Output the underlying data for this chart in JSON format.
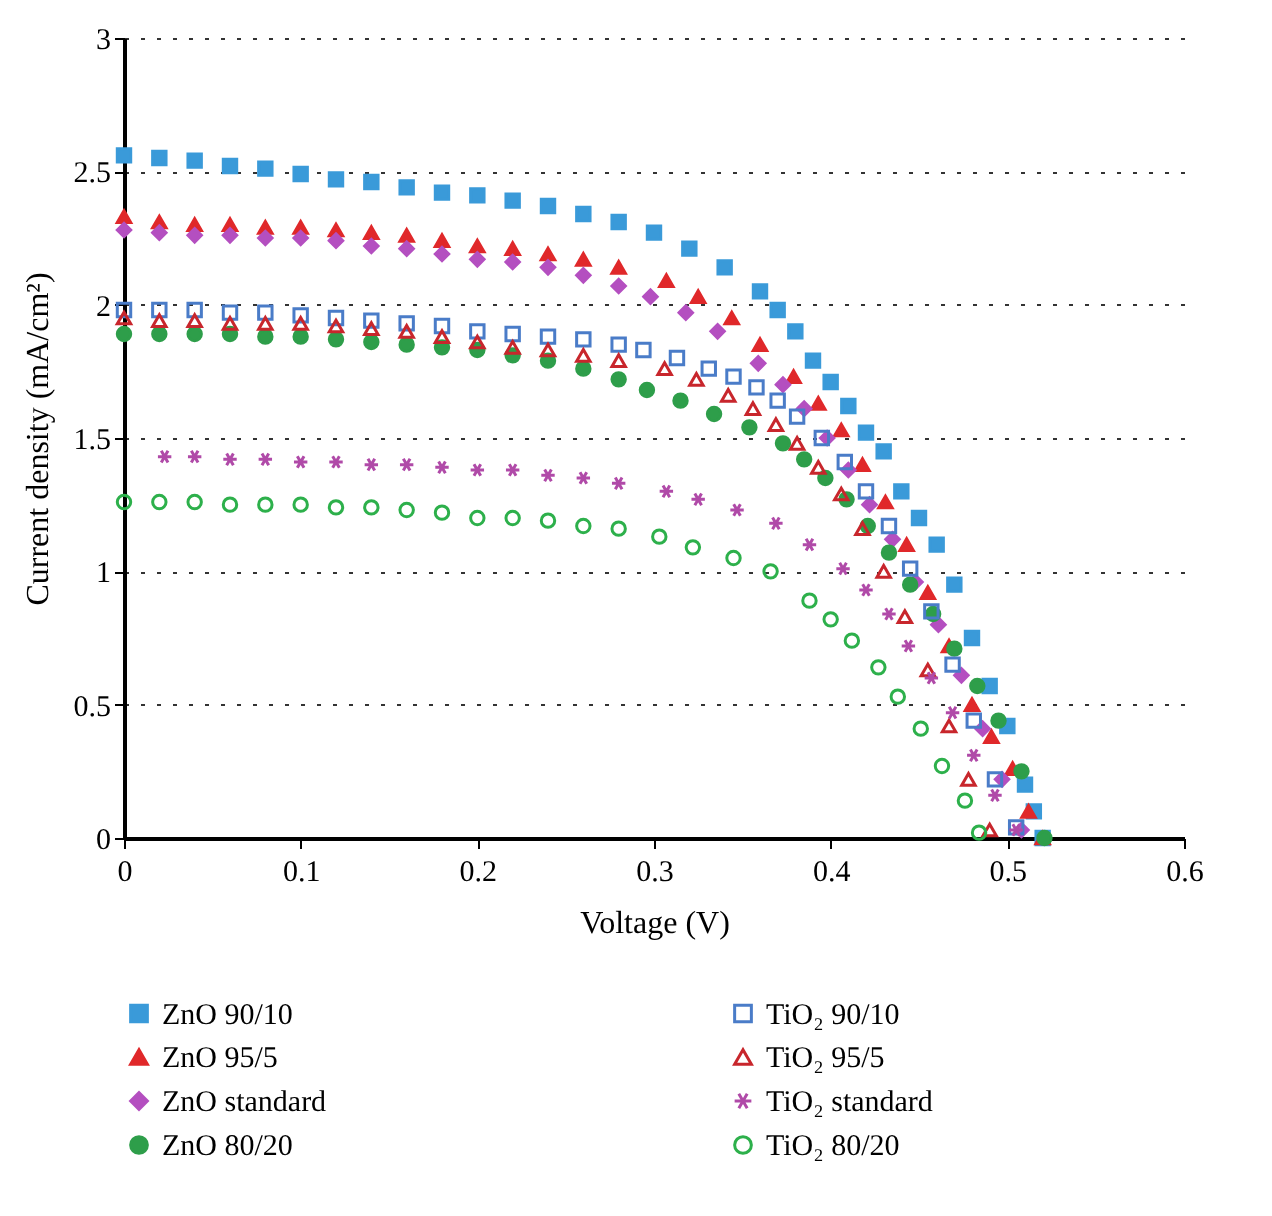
{
  "chart_data": {
    "type": "scatter",
    "xlabel": "Voltage (V)",
    "ylabel": "Current density (mA/cm²)",
    "xlim": [
      0,
      0.6
    ],
    "xticks": [
      0,
      0.1,
      0.2,
      0.3,
      0.4,
      0.5,
      0.6
    ],
    "ylim": [
      0,
      3
    ],
    "yticks": [
      0,
      0.5,
      1,
      1.5,
      2,
      2.5,
      3
    ],
    "grid": "y",
    "legend": "bottom",
    "series": [
      {
        "name": "ZnO 90/10",
        "color": "#3a9ad9",
        "marker": "square",
        "x": [
          0,
          0.02,
          0.04,
          0.06,
          0.08,
          0.1,
          0.12,
          0.14,
          0.16,
          0.18,
          0.2,
          0.22,
          0.24,
          0.26,
          0.28,
          0.3,
          0.32,
          0.34,
          0.36,
          0.37,
          0.38,
          0.39,
          0.4,
          0.41,
          0.42,
          0.43,
          0.44,
          0.45,
          0.46,
          0.47,
          0.48,
          0.49,
          0.5,
          0.51,
          0.515,
          0.52
        ],
        "values": [
          2.56,
          2.55,
          2.54,
          2.52,
          2.51,
          2.49,
          2.47,
          2.46,
          2.44,
          2.42,
          2.41,
          2.39,
          2.37,
          2.34,
          2.31,
          2.27,
          2.21,
          2.14,
          2.05,
          1.98,
          1.9,
          1.79,
          1.71,
          1.62,
          1.52,
          1.45,
          1.3,
          1.2,
          1.1,
          0.95,
          0.75,
          0.57,
          0.42,
          0.2,
          0.1,
          0
        ]
      },
      {
        "name": "ZnO 95/5",
        "color": "#e0282a",
        "marker": "triangle",
        "x": [
          0,
          0.02,
          0.04,
          0.06,
          0.08,
          0.1,
          0.12,
          0.14,
          0.16,
          0.18,
          0.2,
          0.22,
          0.24,
          0.26,
          0.28,
          0.307,
          0.325,
          0.344,
          0.36,
          0.379,
          0.393,
          0.406,
          0.418,
          0.431,
          0.443,
          0.455,
          0.467,
          0.48,
          0.491,
          0.503,
          0.512,
          0.52
        ],
        "values": [
          2.33,
          2.31,
          2.3,
          2.3,
          2.29,
          2.29,
          2.28,
          2.27,
          2.26,
          2.24,
          2.22,
          2.21,
          2.19,
          2.17,
          2.14,
          2.09,
          2.03,
          1.95,
          1.85,
          1.73,
          1.63,
          1.53,
          1.4,
          1.26,
          1.1,
          0.92,
          0.72,
          0.5,
          0.38,
          0.26,
          0.1,
          0
        ]
      },
      {
        "name": "ZnO standard",
        "color": "#b44fc0",
        "marker": "diamond",
        "x": [
          0,
          0.02,
          0.04,
          0.06,
          0.08,
          0.1,
          0.12,
          0.14,
          0.16,
          0.18,
          0.2,
          0.22,
          0.24,
          0.26,
          0.28,
          0.298,
          0.318,
          0.336,
          0.359,
          0.373,
          0.385,
          0.398,
          0.41,
          0.422,
          0.435,
          0.448,
          0.461,
          0.474,
          0.486,
          0.497,
          0.508
        ],
        "values": [
          2.28,
          2.27,
          2.26,
          2.26,
          2.25,
          2.25,
          2.24,
          2.22,
          2.21,
          2.19,
          2.17,
          2.16,
          2.14,
          2.11,
          2.07,
          2.03,
          1.97,
          1.9,
          1.78,
          1.7,
          1.61,
          1.5,
          1.38,
          1.25,
          1.12,
          0.96,
          0.8,
          0.61,
          0.41,
          0.22,
          0.03
        ]
      },
      {
        "name": "ZnO 80/20",
        "color": "#2e9e4a",
        "marker": "circle",
        "x": [
          0,
          0.02,
          0.04,
          0.06,
          0.08,
          0.1,
          0.12,
          0.14,
          0.16,
          0.18,
          0.2,
          0.22,
          0.24,
          0.26,
          0.28,
          0.296,
          0.315,
          0.334,
          0.354,
          0.373,
          0.385,
          0.397,
          0.409,
          0.421,
          0.433,
          0.445,
          0.458,
          0.47,
          0.483,
          0.495,
          0.508,
          0.521
        ],
        "values": [
          1.89,
          1.89,
          1.89,
          1.89,
          1.88,
          1.88,
          1.87,
          1.86,
          1.85,
          1.84,
          1.83,
          1.81,
          1.79,
          1.76,
          1.72,
          1.68,
          1.64,
          1.59,
          1.54,
          1.48,
          1.42,
          1.35,
          1.27,
          1.17,
          1.07,
          0.95,
          0.84,
          0.71,
          0.57,
          0.44,
          0.25,
          0
        ]
      },
      {
        "name": "TiO₂ 90/10",
        "color": "#4a7cc8",
        "marker": "square-open",
        "x": [
          0,
          0.02,
          0.04,
          0.06,
          0.08,
          0.1,
          0.12,
          0.14,
          0.16,
          0.18,
          0.2,
          0.22,
          0.24,
          0.26,
          0.28,
          0.294,
          0.313,
          0.331,
          0.345,
          0.358,
          0.37,
          0.381,
          0.395,
          0.408,
          0.42,
          0.433,
          0.445,
          0.457,
          0.469,
          0.481,
          0.493,
          0.505
        ],
        "values": [
          1.98,
          1.98,
          1.98,
          1.97,
          1.97,
          1.96,
          1.95,
          1.94,
          1.93,
          1.92,
          1.9,
          1.89,
          1.88,
          1.87,
          1.85,
          1.83,
          1.8,
          1.76,
          1.73,
          1.69,
          1.64,
          1.58,
          1.5,
          1.41,
          1.3,
          1.17,
          1.01,
          0.85,
          0.65,
          0.44,
          0.22,
          0.04
        ]
      },
      {
        "name": "TiO₂ 95/5",
        "color": "#c8262c",
        "marker": "triangle-open",
        "x": [
          0,
          0.02,
          0.04,
          0.06,
          0.08,
          0.1,
          0.12,
          0.14,
          0.16,
          0.18,
          0.2,
          0.22,
          0.24,
          0.26,
          0.28,
          0.306,
          0.324,
          0.342,
          0.356,
          0.369,
          0.381,
          0.393,
          0.406,
          0.418,
          0.43,
          0.442,
          0.455,
          0.467,
          0.478,
          0.49
        ],
        "values": [
          1.95,
          1.94,
          1.94,
          1.93,
          1.93,
          1.93,
          1.92,
          1.91,
          1.9,
          1.88,
          1.86,
          1.84,
          1.83,
          1.81,
          1.79,
          1.76,
          1.72,
          1.66,
          1.61,
          1.55,
          1.48,
          1.39,
          1.29,
          1.16,
          1.0,
          0.83,
          0.63,
          0.42,
          0.22,
          0.03
        ]
      },
      {
        "name": "TiO₂ standard",
        "color": "#b04aa8",
        "marker": "cross",
        "x": [
          0.023,
          0.04,
          0.06,
          0.08,
          0.1,
          0.12,
          0.14,
          0.16,
          0.18,
          0.2,
          0.22,
          0.24,
          0.26,
          0.28,
          0.307,
          0.325,
          0.347,
          0.369,
          0.388,
          0.407,
          0.42,
          0.433,
          0.444,
          0.457,
          0.469,
          0.481,
          0.493,
          0.505
        ],
        "values": [
          1.43,
          1.43,
          1.42,
          1.42,
          1.41,
          1.41,
          1.4,
          1.4,
          1.39,
          1.38,
          1.38,
          1.36,
          1.35,
          1.33,
          1.3,
          1.27,
          1.23,
          1.18,
          1.1,
          1.01,
          0.93,
          0.84,
          0.72,
          0.6,
          0.47,
          0.31,
          0.16,
          0.03
        ]
      },
      {
        "name": "TiO₂  80/20",
        "color": "#2db04b",
        "marker": "circle-open",
        "x": [
          0,
          0.02,
          0.04,
          0.06,
          0.08,
          0.1,
          0.12,
          0.14,
          0.16,
          0.18,
          0.2,
          0.22,
          0.24,
          0.26,
          0.28,
          0.303,
          0.322,
          0.345,
          0.366,
          0.388,
          0.4,
          0.412,
          0.427,
          0.438,
          0.451,
          0.463,
          0.476,
          0.484
        ],
        "values": [
          1.26,
          1.26,
          1.26,
          1.25,
          1.25,
          1.25,
          1.24,
          1.24,
          1.23,
          1.22,
          1.2,
          1.2,
          1.19,
          1.17,
          1.16,
          1.13,
          1.09,
          1.05,
          1.0,
          0.89,
          0.82,
          0.74,
          0.64,
          0.53,
          0.41,
          0.27,
          0.14,
          0.02
        ]
      }
    ]
  }
}
